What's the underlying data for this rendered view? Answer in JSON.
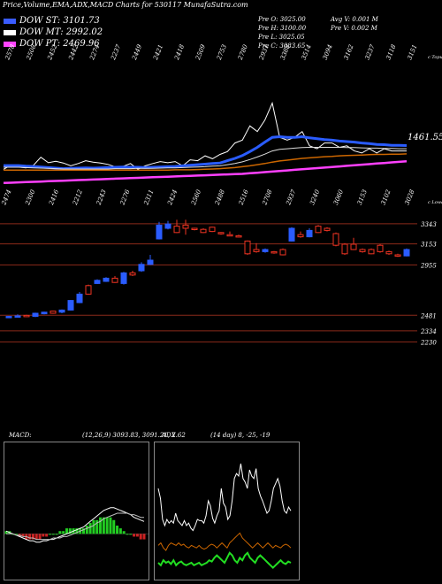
{
  "header": {
    "title": "Price,Volume,EMA,ADX,MACD Charts for 530117 MunafaSutra.com"
  },
  "legend": [
    {
      "label": "DOW ST: 3101.73",
      "color": "#3a5cff"
    },
    {
      "label": "DOW MT: 2992.02",
      "color": "#ffffff"
    },
    {
      "label": "DOW PT: 2469.96",
      "color": "#ff44ff"
    }
  ],
  "stats": {
    "pre_o": "Pre O: 3025.00",
    "pre_h": "Pre H: 3100.00",
    "pre_l": "Pre L: 3025.05",
    "pre_c": "Pre C: 3083.65",
    "avg_v": "Avg V: 0.001 M",
    "pre_v": "Pre V: 0.002 M"
  },
  "chart_data": [
    {
      "type": "line",
      "name": "price-ema-panel",
      "top_labels": [
        "2578",
        "2508",
        "2452",
        "2442",
        "2274",
        "2237",
        "2449",
        "2421",
        "2418",
        "2509",
        "2753",
        "2780",
        "2931",
        "3388",
        "3514",
        "3094",
        "3162",
        "3237",
        "3118",
        "3151"
      ],
      "bottom_labels": [
        "2474",
        "2300",
        "2416",
        "2212",
        "2243",
        "2276",
        "2311",
        "2424",
        "2560",
        "2488",
        "2516",
        "2708",
        "2937",
        "3240",
        "3060",
        "3153",
        "3102",
        "3028"
      ],
      "right_label": "1461.55",
      "top_tag": "c Topu",
      "bottom_tag": "c Lowa",
      "series": [
        {
          "name": "price",
          "values": [
            1548,
            1562,
            1556,
            1553,
            1562,
            1590,
            1571,
            1576,
            1570,
            1560,
            1568,
            1578,
            1573,
            1570,
            1565,
            1556,
            1558,
            1568,
            1548,
            1560,
            1568,
            1575,
            1571,
            1575,
            1560,
            1581,
            1578,
            1595,
            1585,
            1600,
            1610,
            1640,
            1650,
            1700,
            1680,
            1720,
            1780,
            1660,
            1650,
            1660,
            1680,
            1630,
            1620,
            1640,
            1640,
            1625,
            1630,
            1612,
            1605,
            1620,
            1605,
            1620,
            1612,
            1612,
            1612
          ]
        },
        {
          "name": "ema_short",
          "values": [
            1561,
            1561,
            1561,
            1559,
            1558,
            1556,
            1554,
            1552,
            1550,
            1551,
            1552,
            1553,
            1552,
            1553,
            1554,
            1555,
            1556,
            1555,
            1555,
            1554,
            1555,
            1556,
            1557,
            1558,
            1560,
            1562,
            1564,
            1566,
            1568,
            1570,
            1578,
            1586,
            1596,
            1610,
            1625,
            1643,
            1660,
            1662,
            1660,
            1660,
            1662,
            1658,
            1655,
            1652,
            1650,
            1647,
            1645,
            1643,
            1640,
            1638,
            1635,
            1634,
            1632,
            1632,
            1631
          ]
        },
        {
          "name": "ema_mid",
          "values": [
            1555,
            1555,
            1555,
            1554,
            1553,
            1552,
            1551,
            1550,
            1549,
            1549,
            1549,
            1549,
            1549,
            1549,
            1549,
            1550,
            1550,
            1550,
            1551,
            1551,
            1551,
            1552,
            1553,
            1553,
            1554,
            1555,
            1556,
            1557,
            1559,
            1560,
            1564,
            1568,
            1574,
            1582,
            1591,
            1601,
            1612,
            1618,
            1620,
            1622,
            1624,
            1625,
            1625,
            1625,
            1625,
            1625,
            1624,
            1624,
            1623,
            1622,
            1622,
            1621,
            1621,
            1620,
            1620
          ]
        },
        {
          "name": "ema_long",
          "values": [
            1545,
            1545,
            1545,
            1545,
            1545,
            1545,
            1545,
            1545,
            1545,
            1545,
            1545,
            1545,
            1545,
            1545,
            1545,
            1545,
            1545,
            1545,
            1545,
            1545,
            1545,
            1545,
            1545,
            1546,
            1546,
            1546,
            1547,
            1548,
            1549,
            1550,
            1552,
            1554,
            1557,
            1560,
            1564,
            1568,
            1573,
            1577,
            1580,
            1583,
            1586,
            1588,
            1590,
            1592,
            1593,
            1595,
            1596,
            1597,
            1598,
            1599,
            1600,
            1600,
            1601,
            1601,
            1602
          ]
        },
        {
          "name": "ema_pt",
          "values": [
            1500,
            1501,
            1502,
            1503,
            1504,
            1505,
            1506,
            1507,
            1508,
            1509,
            1510,
            1511,
            1512,
            1513,
            1514,
            1515,
            1516,
            1517,
            1518,
            1519,
            1520,
            1521,
            1522,
            1523,
            1524,
            1525,
            1526,
            1527,
            1528,
            1529,
            1530,
            1531,
            1532,
            1534,
            1536,
            1538,
            1540,
            1542,
            1544,
            1546,
            1548,
            1550,
            1552,
            1554,
            1556,
            1558,
            1560,
            1562,
            1564,
            1566,
            1568,
            1570,
            1572,
            1574,
            1576
          ]
        }
      ]
    },
    {
      "type": "bar",
      "name": "candlestick-panel",
      "levels": [
        "3343",
        "3153",
        "2955",
        "2481",
        "2334",
        "2230"
      ],
      "candles": [
        {
          "open": 2460,
          "close": 2470,
          "high": 2475,
          "low": 2455
        },
        {
          "open": 2465,
          "close": 2475,
          "high": 2490,
          "low": 2460
        },
        {
          "open": 2480,
          "close": 2470,
          "high": 2485,
          "low": 2465
        },
        {
          "open": 2470,
          "close": 2500,
          "high": 2505,
          "low": 2465
        },
        {
          "open": 2495,
          "close": 2510,
          "high": 2515,
          "low": 2490
        },
        {
          "open": 2520,
          "close": 2500,
          "high": 2525,
          "low": 2495
        },
        {
          "open": 2510,
          "close": 2530,
          "high": 2535,
          "low": 2500
        },
        {
          "open": 2530,
          "close": 2620,
          "high": 2625,
          "low": 2525
        },
        {
          "open": 2600,
          "close": 2680,
          "high": 2700,
          "low": 2595
        },
        {
          "open": 2760,
          "close": 2680,
          "high": 2770,
          "low": 2675
        },
        {
          "open": 2780,
          "close": 2810,
          "high": 2820,
          "low": 2775
        },
        {
          "open": 2800,
          "close": 2830,
          "high": 2840,
          "low": 2795
        },
        {
          "open": 2830,
          "close": 2790,
          "high": 2850,
          "low": 2785
        },
        {
          "open": 2780,
          "close": 2880,
          "high": 2890,
          "low": 2770
        },
        {
          "open": 2880,
          "close": 2860,
          "high": 2900,
          "low": 2850
        },
        {
          "open": 2900,
          "close": 2960,
          "high": 2980,
          "low": 2890
        },
        {
          "open": 2960,
          "close": 3000,
          "high": 3050,
          "low": 2955
        },
        {
          "open": 3200,
          "close": 3330,
          "high": 3360,
          "low": 3195
        },
        {
          "open": 3300,
          "close": 3340,
          "high": 3370,
          "low": 3290
        },
        {
          "open": 3320,
          "close": 3260,
          "high": 3380,
          "low": 3255
        },
        {
          "open": 3330,
          "close": 3300,
          "high": 3380,
          "low": 3240
        },
        {
          "open": 3300,
          "close": 3290,
          "high": 3305,
          "low": 3280
        },
        {
          "open": 3290,
          "close": 3260,
          "high": 3300,
          "low": 3255
        },
        {
          "open": 3310,
          "close": 3270,
          "high": 3315,
          "low": 3265
        },
        {
          "open": 3260,
          "close": 3250,
          "high": 3265,
          "low": 3240
        },
        {
          "open": 3240,
          "close": 3230,
          "high": 3270,
          "low": 3225
        },
        {
          "open": 3230,
          "close": 3220,
          "high": 3240,
          "low": 3215
        },
        {
          "open": 3180,
          "close": 3060,
          "high": 3185,
          "low": 3050
        },
        {
          "open": 3100,
          "close": 3080,
          "high": 3160,
          "low": 3070
        },
        {
          "open": 3080,
          "close": 3100,
          "high": 3110,
          "low": 3070
        },
        {
          "open": 3080,
          "close": 3070,
          "high": 3085,
          "low": 3060
        },
        {
          "open": 3100,
          "close": 3050,
          "high": 3110,
          "low": 3045
        },
        {
          "open": 3180,
          "close": 3300,
          "high": 3310,
          "low": 3175
        },
        {
          "open": 3240,
          "close": 3220,
          "high": 3270,
          "low": 3210
        },
        {
          "open": 3220,
          "close": 3280,
          "high": 3300,
          "low": 3215
        },
        {
          "open": 3320,
          "close": 3260,
          "high": 3330,
          "low": 3255
        },
        {
          "open": 3300,
          "close": 3280,
          "high": 3310,
          "low": 3270
        },
        {
          "open": 3250,
          "close": 3140,
          "high": 3260,
          "low": 3130
        },
        {
          "open": 3150,
          "close": 3060,
          "high": 3160,
          "low": 3050
        },
        {
          "open": 3150,
          "close": 3100,
          "high": 3210,
          "low": 3095
        },
        {
          "open": 3100,
          "close": 3080,
          "high": 3110,
          "low": 3070
        },
        {
          "open": 3100,
          "close": 3060,
          "high": 3110,
          "low": 3055
        },
        {
          "open": 3140,
          "close": 3080,
          "high": 3150,
          "low": 3070
        },
        {
          "open": 3080,
          "close": 3060,
          "high": 3090,
          "low": 3050
        },
        {
          "open": 3050,
          "close": 3040,
          "high": 3060,
          "low": 3030
        },
        {
          "open": 3040,
          "close": 3100,
          "high": 3110,
          "low": 3035
        }
      ],
      "ylim": [
        2200,
        3450
      ]
    },
    {
      "type": "area",
      "name": "macd-panel",
      "label": "MACD:",
      "values_text": "(12,26,9) 3093.83, 3091.21, 2.62",
      "macd": [
        2,
        1,
        0,
        -1,
        -2,
        -3,
        -4,
        -5,
        -5,
        -6,
        -6,
        -5,
        -5,
        -4,
        -4,
        -3,
        -2,
        -1,
        0,
        1,
        2,
        3,
        4,
        5,
        7,
        9,
        11,
        13,
        15,
        17,
        18,
        19,
        19,
        18,
        17,
        16,
        15,
        14,
        12,
        11,
        10,
        9
      ],
      "signal": [
        0,
        0,
        0,
        -1,
        -1,
        -2,
        -2,
        -3,
        -3,
        -4,
        -4,
        -4,
        -4,
        -4,
        -3,
        -3,
        -3,
        -2,
        -2,
        -1,
        0,
        1,
        2,
        3,
        4,
        5,
        6,
        8,
        9,
        11,
        12,
        13,
        14,
        15,
        15,
        15,
        15,
        14,
        14,
        13,
        12,
        12
      ],
      "histogram": [
        1,
        1,
        0,
        0,
        -1,
        -1,
        -2,
        -2,
        -2,
        -2,
        -2,
        -1,
        -1,
        0,
        0,
        0,
        1,
        1,
        2,
        2,
        2,
        2,
        2,
        2,
        3,
        4,
        5,
        5,
        6,
        6,
        6,
        6,
        5,
        3,
        2,
        1,
        0,
        0,
        -1,
        -1,
        -2,
        -2
      ],
      "ylim": [
        -30,
        60
      ]
    },
    {
      "type": "line",
      "name": "adx-panel",
      "label": "ADX",
      "values_text": "(14 day) 8, -25, -19",
      "series": [
        {
          "name": "adx",
          "values": [
            70,
            62,
            45,
            40,
            45,
            42,
            44,
            42,
            50,
            44,
            42,
            40,
            44,
            40,
            42,
            38,
            36,
            40,
            45,
            44,
            44,
            42,
            48,
            60,
            56,
            46,
            42,
            48,
            52,
            70,
            58,
            55,
            45,
            48,
            60,
            78,
            82,
            80,
            90,
            78,
            75,
            70,
            85,
            80,
            78,
            86,
            70,
            64,
            60,
            55,
            50,
            52,
            60,
            70,
            74,
            78,
            72,
            60,
            52,
            50,
            55,
            52
          ]
        },
        {
          "name": "plus_di",
          "values": [
            10,
            8,
            12,
            10,
            11,
            9,
            12,
            8,
            10,
            11,
            9,
            8,
            9,
            10,
            8,
            9,
            10,
            8,
            9,
            10,
            12,
            11,
            14,
            16,
            14,
            12,
            10,
            14,
            18,
            16,
            12,
            10,
            14,
            12,
            16,
            18,
            14,
            12,
            10,
            14,
            16,
            14,
            12,
            10,
            8,
            6,
            8,
            10,
            12,
            10,
            9,
            11,
            10
          ]
        },
        {
          "name": "minus_di",
          "values": [
            24,
            26,
            22,
            20,
            24,
            26,
            25,
            24,
            26,
            24,
            25,
            23,
            22,
            24,
            23,
            22,
            24,
            22,
            21,
            22,
            24,
            25,
            24,
            22,
            24,
            26,
            24,
            22,
            26,
            28,
            30,
            32,
            34,
            30,
            28,
            26,
            24,
            22,
            24,
            26,
            24,
            22,
            24,
            26,
            24,
            22,
            24,
            23,
            22,
            24,
            25,
            24,
            22
          ]
        }
      ],
      "ylim": [
        0,
        100
      ]
    }
  ]
}
